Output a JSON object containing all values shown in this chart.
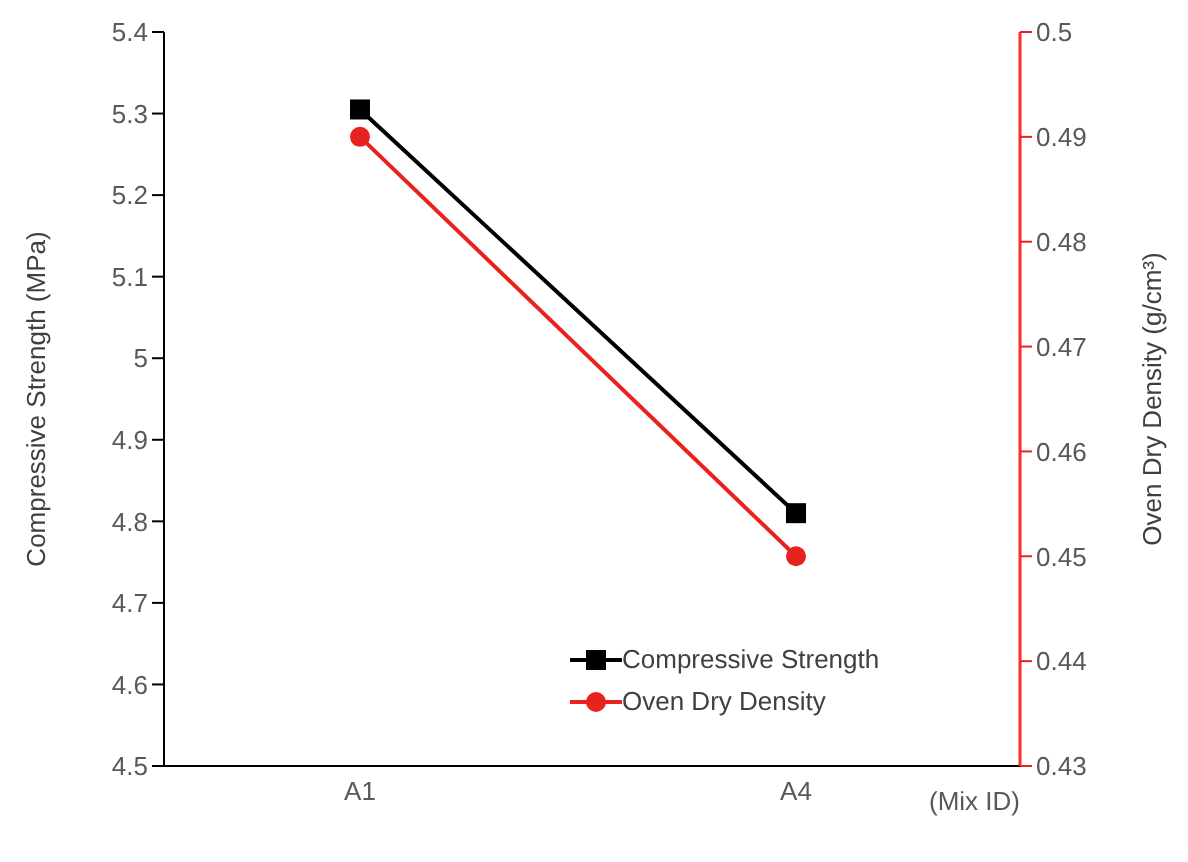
{
  "chart_data": {
    "type": "line",
    "xlabel": "(Mix ID)",
    "ylabel": "Compressive Strength (MPa)",
    "y2label": "Oven Dry Density (g/cm³)",
    "categories": [
      "A1",
      "A4"
    ],
    "series": [
      {
        "name": "Compressive Strength",
        "color": "#000000",
        "values": [
          5.305,
          4.81
        ],
        "marker": "square"
      },
      {
        "name": "Oven Dry Density",
        "color": "#e8221f",
        "values": [
          0.49,
          0.45
        ],
        "axis": "y2",
        "marker": "circle"
      }
    ],
    "ylim": [
      4.5,
      5.4
    ],
    "yticks": [
      {
        "value": 4.5,
        "label": "4.5"
      },
      {
        "value": 4.6,
        "label": "4.6"
      },
      {
        "value": 4.7,
        "label": "4.7"
      },
      {
        "value": 4.8,
        "label": "4.8"
      },
      {
        "value": 4.9,
        "label": "4.9"
      },
      {
        "value": 5,
        "label": "5"
      },
      {
        "value": 5.1,
        "label": "5.1"
      },
      {
        "value": 5.2,
        "label": "5.2"
      },
      {
        "value": 5.3,
        "label": "5.3"
      },
      {
        "value": 5.4,
        "label": "5.4"
      }
    ],
    "y2lim": [
      0.43,
      0.5
    ],
    "y2ticks": [
      {
        "value": 0.43,
        "label": "0.43"
      },
      {
        "value": 0.44,
        "label": "0.44"
      },
      {
        "value": 0.45,
        "label": "0.45"
      },
      {
        "value": 0.46,
        "label": "0.46"
      },
      {
        "value": 0.47,
        "label": "0.47"
      },
      {
        "value": 0.48,
        "label": "0.48"
      },
      {
        "value": 0.49,
        "label": "0.49"
      },
      {
        "value": 0.5,
        "label": "0.5"
      }
    ],
    "grid": false,
    "legend": "bottom right",
    "line_style": "solid"
  }
}
